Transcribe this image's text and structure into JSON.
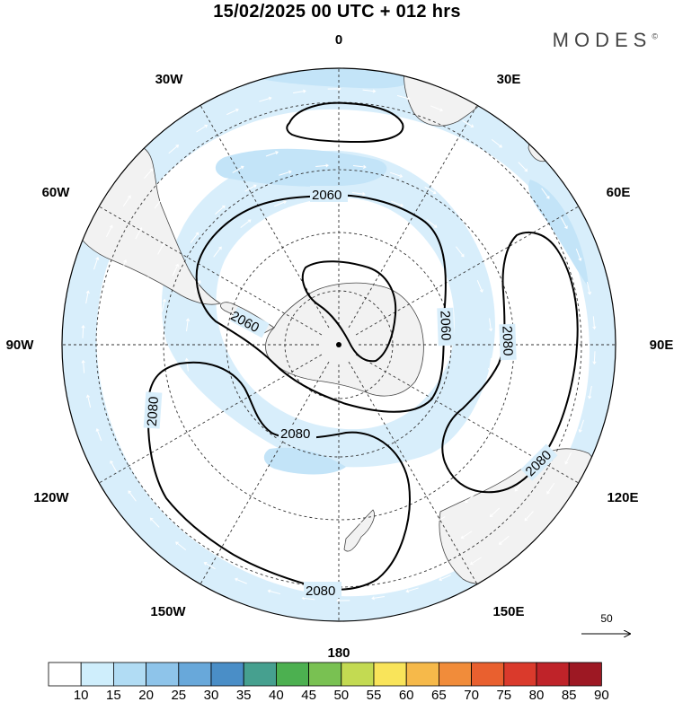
{
  "header": {
    "title": "15/02/2025  00 UTC  + 012 hrs",
    "brand": "MODES",
    "brand_mark": "©"
  },
  "map": {
    "projection": "south polar stereographic",
    "longitude_labels": [
      {
        "id": "lon-0",
        "text": "0"
      },
      {
        "id": "lon-30e",
        "text": "30E"
      },
      {
        "id": "lon-60e",
        "text": "60E"
      },
      {
        "id": "lon-90e",
        "text": "90E"
      },
      {
        "id": "lon-120e",
        "text": "120E"
      },
      {
        "id": "lon-150e",
        "text": "150E"
      },
      {
        "id": "lon-180",
        "text": "180"
      },
      {
        "id": "lon-150w",
        "text": "150W"
      },
      {
        "id": "lon-120w",
        "text": "120W"
      },
      {
        "id": "lon-90w",
        "text": "90W"
      },
      {
        "id": "lon-60w",
        "text": "60W"
      },
      {
        "id": "lon-30w",
        "text": "30W"
      }
    ],
    "contour_labels": [
      "2060",
      "2060",
      "2060",
      "2080",
      "2080",
      "2080",
      "2080",
      "2080"
    ],
    "reference_vector": {
      "label": "50",
      "direction": "right"
    },
    "colors": {
      "shade_10_15": "#d8eefb",
      "shade_15_20": "#c3e4f8",
      "land": "#f2f2f2",
      "contour": "#000000",
      "grid": "#333333"
    }
  },
  "colorbar": {
    "labels": [
      "10",
      "15",
      "20",
      "25",
      "30",
      "35",
      "40",
      "45",
      "50",
      "55",
      "60",
      "65",
      "70",
      "75",
      "80",
      "85",
      "90"
    ],
    "colors": [
      "#ffffff",
      "#cfeefc",
      "#b1dcf4",
      "#8ec4ea",
      "#68a8da",
      "#4a8ec7",
      "#46a08f",
      "#4cb050",
      "#79c152",
      "#c3da52",
      "#f9e45a",
      "#f6b94a",
      "#f18c3a",
      "#e9602f",
      "#da3a2c",
      "#bf2329",
      "#9d1823"
    ]
  }
}
